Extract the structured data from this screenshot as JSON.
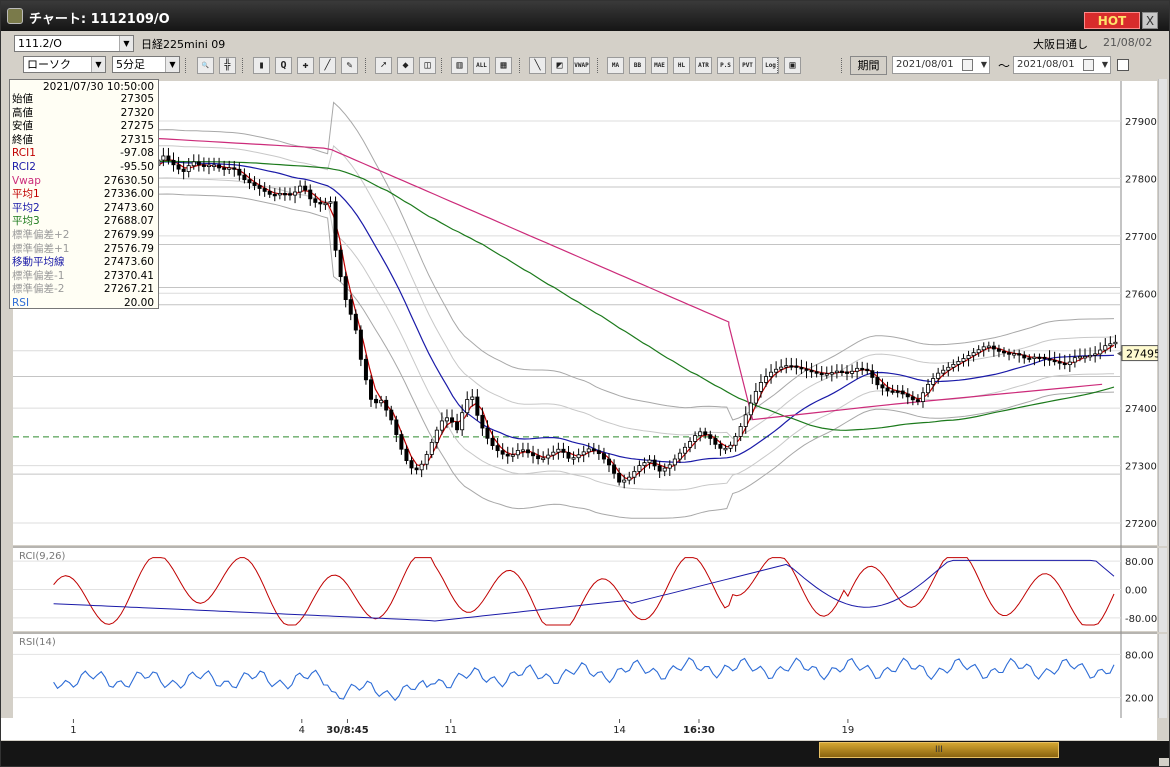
{
  "window": {
    "title": "チャート: 1112109/O",
    "hot_label": "HOT",
    "close_label": "X"
  },
  "infobar": {
    "symbol_select": "111.2/O",
    "symbol_name": "日経225mini 09",
    "market": "大阪日通し",
    "date": "21/08/02"
  },
  "toolbar": {
    "chart_type": "ローソク",
    "interval": "5分足",
    "buttons": [
      {
        "name": "zoom-tool-button",
        "label": "🔍"
      },
      {
        "name": "crosshair-tool-button",
        "label": "╬"
      },
      {
        "name": "candle-tool-button",
        "label": "▮"
      },
      {
        "name": "search-tool-button",
        "label": "Q"
      },
      {
        "name": "tick-tool-button",
        "label": "✚"
      },
      {
        "name": "draw-tool-button",
        "label": "╱"
      },
      {
        "name": "pen-tool-button",
        "label": "✎"
      },
      {
        "name": "cursor-tool-button",
        "label": "➚"
      },
      {
        "name": "stamp-tool-button",
        "label": "◆"
      },
      {
        "name": "box-tool-button",
        "label": "◫"
      },
      {
        "name": "multi-tool-button",
        "label": "▥"
      },
      {
        "name": "all-tool-button",
        "label": "ALL"
      },
      {
        "name": "pattern-tool-button",
        "label": "▦"
      },
      {
        "name": "brush-tool-button",
        "label": "╲"
      },
      {
        "name": "color-tool-button",
        "label": "◩"
      },
      {
        "name": "vwap-tool-button",
        "label": "VWAP"
      },
      {
        "name": "ma-tool-button",
        "label": "MA"
      },
      {
        "name": "bb-tool-button",
        "label": "BB"
      },
      {
        "name": "mae-tool-button",
        "label": "MAE"
      },
      {
        "name": "hl-tool-button",
        "label": "HL"
      },
      {
        "name": "atr-tool-button",
        "label": "ATR"
      },
      {
        "name": "psar-tool-button",
        "label": "P.S A.R"
      },
      {
        "name": "pvt-tool-button",
        "label": "PVT"
      },
      {
        "name": "log-tool-button",
        "label": "Log"
      },
      {
        "name": "screen-tool-button",
        "label": "▣"
      }
    ],
    "period_button": "期間",
    "date_from": "2021/08/01",
    "tilde": "〜",
    "date_to": "2021/08/01"
  },
  "ohlc_panel": {
    "datetime": "2021/07/30  10:50:00",
    "rows": [
      {
        "key": "始値",
        "value": "27305",
        "color": "#000000"
      },
      {
        "key": "高値",
        "value": "27320",
        "color": "#000000"
      },
      {
        "key": "安値",
        "value": "27275",
        "color": "#000000"
      },
      {
        "key": "終値",
        "value": "27315",
        "color": "#000000"
      },
      {
        "key": "RCI1",
        "value": "-97.08",
        "color": "#c00000"
      },
      {
        "key": "RCI2",
        "value": "-95.50",
        "color": "#1a1aa8"
      },
      {
        "key": "Vwap",
        "value": "27630.50",
        "color": "#cc2b7a"
      },
      {
        "key": "平均1",
        "value": "27336.00",
        "color": "#c00000"
      },
      {
        "key": "平均2",
        "value": "27473.60",
        "color": "#1a1aa8"
      },
      {
        "key": "平均3",
        "value": "27688.07",
        "color": "#1c7a1c"
      },
      {
        "key": "標準偏差+2",
        "value": "27679.99",
        "color": "#9a9a9a"
      },
      {
        "key": "標準偏差+1",
        "value": "27576.79",
        "color": "#9a9a9a"
      },
      {
        "key": "移動平均線",
        "value": "27473.60",
        "color": "#1a1aa8"
      },
      {
        "key": "標準偏差-1",
        "value": "27370.41",
        "color": "#9a9a9a"
      },
      {
        "key": "標準偏差-2",
        "value": "27267.21",
        "color": "#9a9a9a"
      },
      {
        "key": "RSI",
        "value": "20.00",
        "color": "#2d6cd6"
      }
    ]
  },
  "chart_data": {
    "type": "line",
    "panels": [
      {
        "name": "price",
        "ylim": [
          27200,
          27900
        ],
        "y_ticks": [
          "27900",
          "27800",
          "27700",
          "27600",
          "27500",
          "27400",
          "27300",
          "27200"
        ],
        "last_price_label": "27495",
        "reference_line": 27350
      },
      {
        "name": "rci",
        "label": "RCI(9,26)",
        "ylim": [
          -100,
          100
        ],
        "y_ticks": [
          "80.00",
          "0.00",
          "-80.00"
        ]
      },
      {
        "name": "rsi",
        "label": "RSI(14)",
        "ylim": [
          0,
          100
        ],
        "y_ticks": [
          "80.00",
          "20.00"
        ]
      }
    ],
    "x_ticks": [
      "1",
      "4",
      "30/8:45",
      "11",
      "14",
      "16:30",
      "19"
    ],
    "x_ticks_bold": [
      "30/8:45",
      "16:30"
    ],
    "bars": 195,
    "series": [
      {
        "name": "Vwap",
        "color": "#cc2b7a"
      },
      {
        "name": "平均1",
        "color": "#c00000"
      },
      {
        "name": "平均2",
        "color": "#1a1aa8"
      },
      {
        "name": "平均3",
        "color": "#1c7a1c"
      },
      {
        "name": "RCI1",
        "color": "#c00000"
      },
      {
        "name": "RCI2",
        "color": "#1a1aa8"
      },
      {
        "name": "RSI",
        "color": "#2d6cd6"
      }
    ],
    "price_path": [
      [
        0,
        27830
      ],
      [
        8,
        27815
      ],
      [
        15,
        27840
      ],
      [
        20,
        27825
      ],
      [
        25,
        27810
      ],
      [
        30,
        27830
      ],
      [
        35,
        27820
      ],
      [
        40,
        27825
      ],
      [
        45,
        27815
      ],
      [
        50,
        27820
      ],
      [
        55,
        27800
      ],
      [
        60,
        27790
      ],
      [
        65,
        27780
      ],
      [
        70,
        27770
      ],
      [
        75,
        27775
      ],
      [
        80,
        27770
      ],
      [
        85,
        27790
      ],
      [
        90,
        27760
      ],
      [
        95,
        27755
      ],
      [
        100,
        27760
      ],
      [
        101,
        27690
      ],
      [
        103,
        27660
      ],
      [
        106,
        27600
      ],
      [
        109,
        27570
      ],
      [
        112,
        27540
      ],
      [
        115,
        27480
      ],
      [
        118,
        27440
      ],
      [
        121,
        27400
      ],
      [
        124,
        27420
      ],
      [
        127,
        27400
      ],
      [
        130,
        27380
      ],
      [
        133,
        27350
      ],
      [
        136,
        27320
      ],
      [
        139,
        27300
      ],
      [
        142,
        27290
      ],
      [
        145,
        27300
      ],
      [
        148,
        27320
      ],
      [
        151,
        27345
      ],
      [
        154,
        27370
      ],
      [
        157,
        27385
      ],
      [
        160,
        27380
      ],
      [
        163,
        27360
      ],
      [
        166,
        27395
      ],
      [
        170,
        27430
      ],
      [
        174,
        27380
      ],
      [
        178,
        27350
      ],
      [
        182,
        27330
      ],
      [
        186,
        27320
      ],
      [
        190,
        27315
      ],
      [
        195,
        27330
      ],
      [
        200,
        27320
      ],
      [
        205,
        27310
      ],
      [
        210,
        27320
      ],
      [
        215,
        27330
      ],
      [
        220,
        27310
      ],
      [
        225,
        27320
      ],
      [
        230,
        27330
      ],
      [
        235,
        27320
      ],
      [
        240,
        27300
      ],
      [
        245,
        27270
      ],
      [
        250,
        27280
      ],
      [
        255,
        27300
      ],
      [
        260,
        27310
      ],
      [
        265,
        27290
      ],
      [
        270,
        27300
      ],
      [
        275,
        27320
      ],
      [
        280,
        27340
      ],
      [
        285,
        27360
      ],
      [
        290,
        27350
      ],
      [
        295,
        27330
      ],
      [
        300,
        27330
      ],
      [
        305,
        27360
      ],
      [
        310,
        27400
      ],
      [
        315,
        27440
      ],
      [
        320,
        27460
      ],
      [
        325,
        27470
      ],
      [
        330,
        27475
      ],
      [
        335,
        27470
      ],
      [
        340,
        27465
      ],
      [
        345,
        27460
      ],
      [
        350,
        27460
      ],
      [
        355,
        27465
      ],
      [
        360,
        27460
      ],
      [
        365,
        27470
      ],
      [
        370,
        27465
      ],
      [
        375,
        27440
      ],
      [
        380,
        27430
      ],
      [
        385,
        27430
      ],
      [
        390,
        27420
      ],
      [
        395,
        27410
      ],
      [
        400,
        27440
      ],
      [
        405,
        27460
      ],
      [
        410,
        27470
      ],
      [
        415,
        27480
      ],
      [
        420,
        27490
      ],
      [
        425,
        27500
      ],
      [
        430,
        27510
      ],
      [
        435,
        27500
      ],
      [
        440,
        27495
      ],
      [
        445,
        27495
      ],
      [
        450,
        27485
      ],
      [
        455,
        27490
      ],
      [
        460,
        27485
      ],
      [
        465,
        27480
      ],
      [
        470,
        27475
      ],
      [
        475,
        27490
      ],
      [
        480,
        27490
      ],
      [
        485,
        27495
      ],
      [
        490,
        27510
      ],
      [
        495,
        27515
      ]
    ]
  },
  "bottom": {
    "grip_label": "III"
  }
}
